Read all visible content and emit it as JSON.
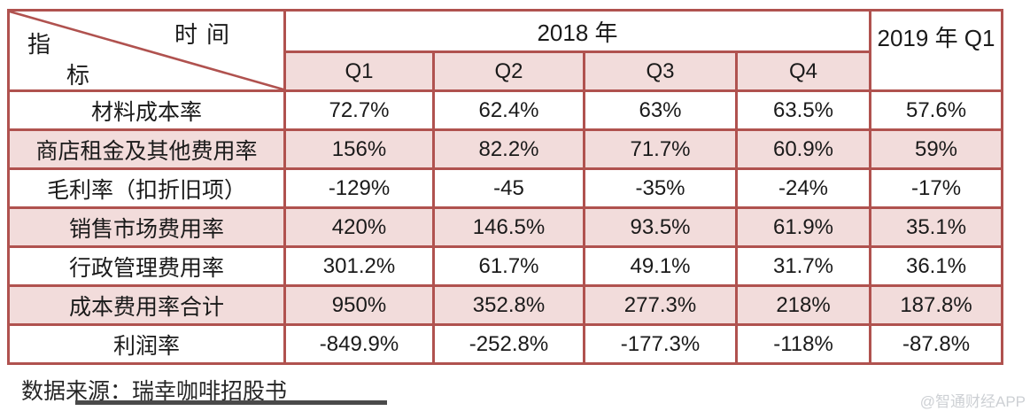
{
  "colors": {
    "border": "#b0524f",
    "row_shade": "#f2dcdb",
    "text": "#1a1a1a",
    "watermark": "#cdd0d4"
  },
  "header": {
    "corner_top_right": "时间",
    "corner_bottom_left_char1": "指",
    "corner_bottom_left_char2": "标",
    "year_2018": "2018 年",
    "quarters": [
      "Q1",
      "Q2",
      "Q3",
      "Q4"
    ],
    "year_2019": "2019 年 Q1"
  },
  "table": {
    "rows": [
      {
        "label": "材料成本率",
        "values": [
          "72.7%",
          "62.4%",
          "63%",
          "63.5%",
          "57.6%"
        ],
        "shaded": false
      },
      {
        "label": "商店租金及其他费用率",
        "values": [
          "156%",
          "82.2%",
          "71.7%",
          "60.9%",
          "59%"
        ],
        "shaded": true
      },
      {
        "label": "毛利率（扣折旧项）",
        "values": [
          "-129%",
          "-45",
          "-35%",
          "-24%",
          "-17%"
        ],
        "shaded": false
      },
      {
        "label": "销售市场费用率",
        "values": [
          "420%",
          "146.5%",
          "93.5%",
          "61.9%",
          "35.1%"
        ],
        "shaded": true
      },
      {
        "label": "行政管理费用率",
        "values": [
          "301.2%",
          "61.7%",
          "49.1%",
          "31.7%",
          "36.1%"
        ],
        "shaded": false
      },
      {
        "label": "成本费用率合计",
        "values": [
          "950%",
          "352.8%",
          "277.3%",
          "218%",
          "187.8%"
        ],
        "shaded": true
      },
      {
        "label": "利润率",
        "values": [
          "-849.9%",
          "-252.8%",
          "-177.3%",
          "-118%",
          "-87.8%"
        ],
        "shaded": false
      }
    ]
  },
  "footer": {
    "source": "数据来源：瑞幸咖啡招股书",
    "watermark": "@智通财经APP"
  },
  "chart_data": {
    "type": "table",
    "title": "瑞幸咖啡成本费用率",
    "columns": [
      "指标/时间",
      "2018年 Q1",
      "2018年 Q2",
      "2018年 Q3",
      "2018年 Q4",
      "2019年 Q1"
    ],
    "rows": [
      [
        "材料成本率",
        "72.7%",
        "62.4%",
        "63%",
        "63.5%",
        "57.6%"
      ],
      [
        "商店租金及其他费用率",
        "156%",
        "82.2%",
        "71.7%",
        "60.9%",
        "59%"
      ],
      [
        "毛利率（扣折旧项）",
        "-129%",
        "-45",
        "-35%",
        "-24%",
        "-17%"
      ],
      [
        "销售市场费用率",
        "420%",
        "146.5%",
        "93.5%",
        "61.9%",
        "35.1%"
      ],
      [
        "行政管理费用率",
        "301.2%",
        "61.7%",
        "49.1%",
        "31.7%",
        "36.1%"
      ],
      [
        "成本费用率合计",
        "950%",
        "352.8%",
        "277.3%",
        "218%",
        "187.8%"
      ],
      [
        "利润率",
        "-849.9%",
        "-252.8%",
        "-177.3%",
        "-118%",
        "-87.8%"
      ]
    ],
    "source": "数据来源：瑞幸咖啡招股书"
  }
}
